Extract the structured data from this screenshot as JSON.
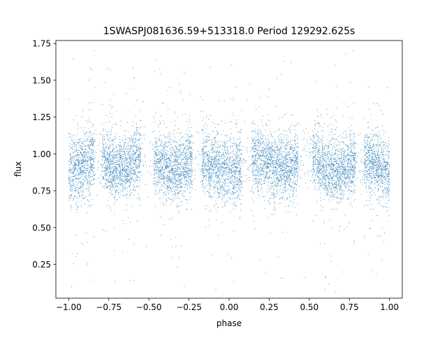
{
  "chart_data": {
    "type": "scatter",
    "title": "1SWASPJ081636.59+513318.0 Period 129292.625s",
    "xlabel": "phase",
    "ylabel": "flux",
    "xlim": [
      -1.08,
      1.08
    ],
    "ylim": [
      0.02,
      1.77
    ],
    "x_ticks": [
      -1.0,
      -0.75,
      -0.5,
      -0.25,
      0.0,
      0.25,
      0.5,
      0.75,
      1.0
    ],
    "x_tick_labels": [
      "−1.00",
      "−0.75",
      "−0.50",
      "−0.25",
      "0.00",
      "0.25",
      "0.50",
      "0.75",
      "1.00"
    ],
    "y_ticks": [
      0.25,
      0.5,
      0.75,
      1.0,
      1.25,
      1.5,
      1.75
    ],
    "y_tick_labels": [
      "0.25",
      "0.50",
      "0.75",
      "1.00",
      "1.25",
      "1.50",
      "1.75"
    ],
    "grid": false,
    "legend": "none",
    "marker_color": "#1f77b4",
    "series": [
      {
        "x": [
          -1.0,
          -0.95,
          -0.9,
          -0.85,
          -0.8,
          -0.75,
          -0.7,
          -0.65,
          -0.6,
          -0.55,
          -0.5,
          -0.45,
          -0.4,
          -0.35,
          -0.3,
          -0.25,
          -0.2,
          -0.15,
          -0.1,
          -0.05,
          0.0,
          0.05,
          0.1,
          0.15,
          0.2,
          0.25,
          0.3,
          0.35,
          0.4,
          0.45,
          0.5,
          0.55,
          0.6,
          0.65,
          0.7,
          0.75,
          0.8,
          0.85,
          0.9,
          0.95,
          1.0
        ],
        "y": [
          0.87,
          0.9,
          0.93,
          0.96,
          0.97,
          0.93,
          0.9,
          0.91,
          0.94,
          0.97,
          0.97,
          0.95,
          0.92,
          0.9,
          0.91,
          0.94,
          0.96,
          0.96,
          0.93,
          0.9,
          0.89,
          0.9,
          0.93,
          0.96,
          0.97,
          0.94,
          0.91,
          0.9,
          0.92,
          0.96,
          0.97,
          0.95,
          0.91,
          0.88,
          0.89,
          0.92,
          0.95,
          0.97,
          0.93,
          0.89,
          0.88
        ]
      }
    ]
  }
}
